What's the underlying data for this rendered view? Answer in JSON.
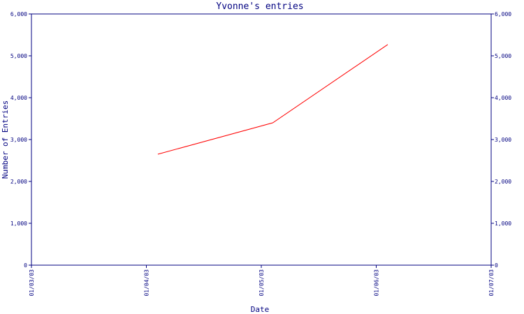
{
  "chart_data": {
    "type": "line",
    "title": "Yvonne's entries",
    "xlabel": "Date",
    "ylabel": "Number of Entries",
    "x_tick_labels": [
      "01/03/03",
      "01/04/03",
      "01/05/03",
      "01/06/03",
      "01/07/03"
    ],
    "y_tick_labels": [
      "0",
      "1,000",
      "2,000",
      "3,000",
      "4,000",
      "5,000",
      "6,000"
    ],
    "y_tick_values": [
      0,
      1000,
      2000,
      3000,
      4000,
      5000,
      6000
    ],
    "ylim": [
      0,
      6000
    ],
    "xlim": [
      "2003-01-03",
      "2003-01-07"
    ],
    "right_axis_mirrored": true,
    "grid": false,
    "series": [
      {
        "x": [
          "2003-01-04",
          "2003-01-05",
          "2003-01-06"
        ],
        "values": [
          2650,
          3400,
          5270
        ]
      }
    ]
  },
  "colors": {
    "axis": "#000080",
    "text": "#000080",
    "series": "#ff0000",
    "background": "#ffffff"
  }
}
